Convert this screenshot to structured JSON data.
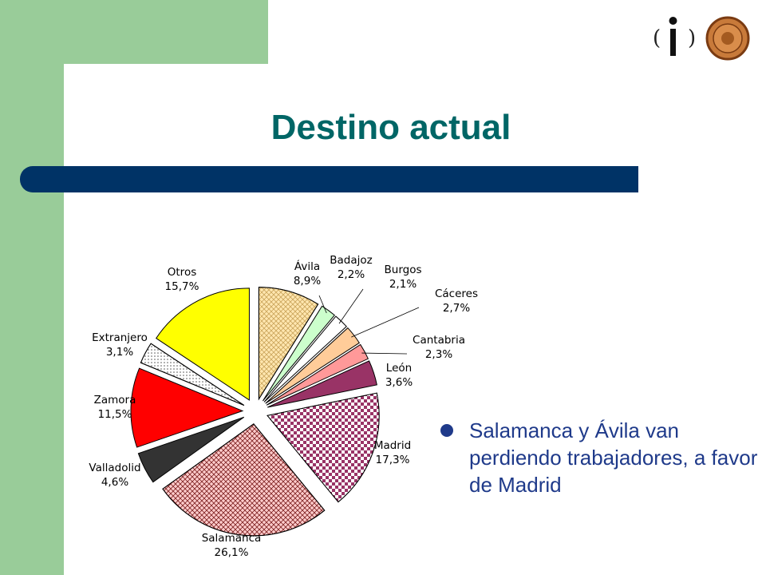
{
  "slide": {
    "title": "Destino actual",
    "bullet": "Salamanca y Ávila van perdiendo trabajadores, a favor de Madrid"
  },
  "colors": {
    "sidebar": "#99cc99",
    "title": "#006666",
    "title_bar": "#003366",
    "bullet_text": "#1f3a8a"
  },
  "chart_data": {
    "type": "pie",
    "exploded": true,
    "start": "12 o'clock, clockwise",
    "slices": [
      {
        "label": "Ávila",
        "value_label": "8,9%",
        "value": 8.9,
        "color": "#ffe7b0",
        "pattern": "crosshatch"
      },
      {
        "label": "Badajoz",
        "value_label": "2,2%",
        "value": 2.2,
        "color": "#ccffcc",
        "pattern": "none"
      },
      {
        "label": "Burgos",
        "value_label": "2,1%",
        "value": 2.1,
        "color": "#ffffff",
        "pattern": "none"
      },
      {
        "label": "Cáceres",
        "value_label": "2,7%",
        "value": 2.7,
        "color": "#ffcc99",
        "pattern": "none"
      },
      {
        "label": "Cantabria",
        "value_label": "2,3%",
        "value": 2.3,
        "color": "#ff9999",
        "pattern": "none"
      },
      {
        "label": "León",
        "value_label": "3,6%",
        "value": 3.6,
        "color": "#993366",
        "pattern": "none"
      },
      {
        "label": "Madrid",
        "value_label": "17,3%",
        "value": 17.3,
        "color": "#993366",
        "pattern": "checker"
      },
      {
        "label": "Salamanca",
        "value_label": "26,1%",
        "value": 26.1,
        "color": "#ffcccc",
        "pattern": "crosshatch-dark"
      },
      {
        "label": "Valladolid",
        "value_label": "4,6%",
        "value": 4.6,
        "color": "#333333",
        "pattern": "none"
      },
      {
        "label": "Zamora",
        "value_label": "11,5%",
        "value": 11.5,
        "color": "#ff0000",
        "pattern": "none"
      },
      {
        "label": "Extranjero",
        "value_label": "3,1%",
        "value": 3.1,
        "color": "#ffffff",
        "pattern": "dots"
      },
      {
        "label": "Otros",
        "value_label": "15,7%",
        "value": 15.7,
        "color": "#ffff00",
        "pattern": "none"
      }
    ]
  }
}
